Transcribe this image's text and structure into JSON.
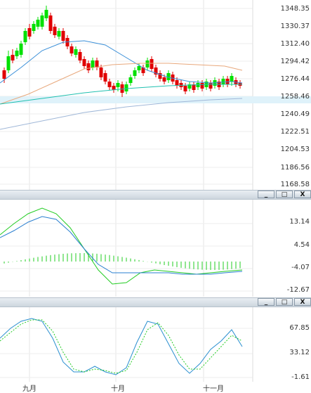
{
  "price_axis": [
    "1348.35",
    "1330.37",
    "1312.40",
    "1294.42",
    "1276.44",
    "1258.46",
    "1240.49",
    "1222.51",
    "1204.53",
    "1186.56",
    "1168.58"
  ],
  "macd_axis": [
    "13.14",
    "4.54",
    "-4.07",
    "-12.67"
  ],
  "kd_axis": [
    "67.85",
    "33.12",
    "-1.61"
  ],
  "date_axis": [
    "九月",
    "十月",
    "十一月"
  ],
  "pane_controls": {
    "minimize": "_",
    "restore": "□",
    "close": "X"
  },
  "colors": {
    "up": "#00e000",
    "down": "#e00000",
    "ma_short": "#3a8fd8",
    "ma_long": "#e8a87c",
    "ma_mid": "#20c0b0",
    "ma_slow": "#a0b8d8",
    "macd_fast": "#22cc22",
    "macd_slow": "#2a7fd0",
    "kd_k": "#2a8fd0",
    "kd_d": "#22cc22"
  }
}
